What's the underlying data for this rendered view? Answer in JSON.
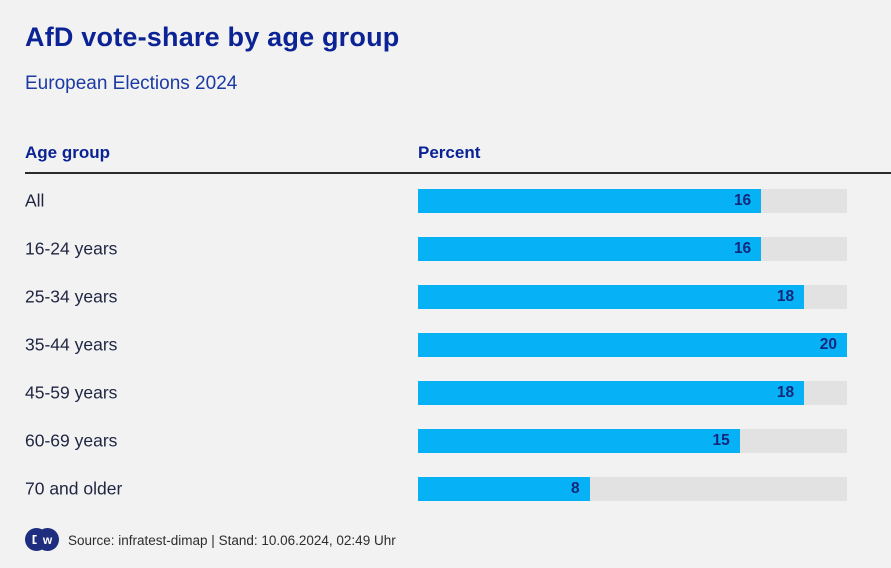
{
  "chart_data": {
    "type": "bar",
    "orientation": "horizontal",
    "title": "AfD vote-share by age group",
    "subtitle": "European Elections 2024",
    "categories": [
      "All",
      "16-24 years",
      "25-34 years",
      "35-44 years",
      "45-59 years",
      "60-69 years",
      "70 and older"
    ],
    "values": [
      16,
      16,
      18,
      20,
      18,
      15,
      8
    ],
    "xlabel": "Percent",
    "ylabel": "Age group",
    "xlim": [
      0,
      20
    ],
    "grid": false,
    "legend": "none",
    "value_label_position": "inside-end"
  },
  "table": {
    "columns": [
      "Age group",
      "Percent"
    ]
  },
  "footer": {
    "logo": "dw-logo",
    "logo_letters": [
      "D",
      "w"
    ],
    "source": "Source: infratest-dimap | Stand: 10.06.2024, 02:49 Uhr"
  },
  "colors": {
    "background": "#f2f2f2",
    "title": "#0b2394",
    "subtitle": "#1c3aa5",
    "column_header": "#0a2293",
    "row_label": "#1f2540",
    "divider": "#2b2b2b",
    "bar_fill": "#06b1f6",
    "bar_track": "#e2e2e2",
    "value_label": "#12287d",
    "footer_text": "#2d2d2d",
    "logo_navy": "#1e2d7d"
  }
}
